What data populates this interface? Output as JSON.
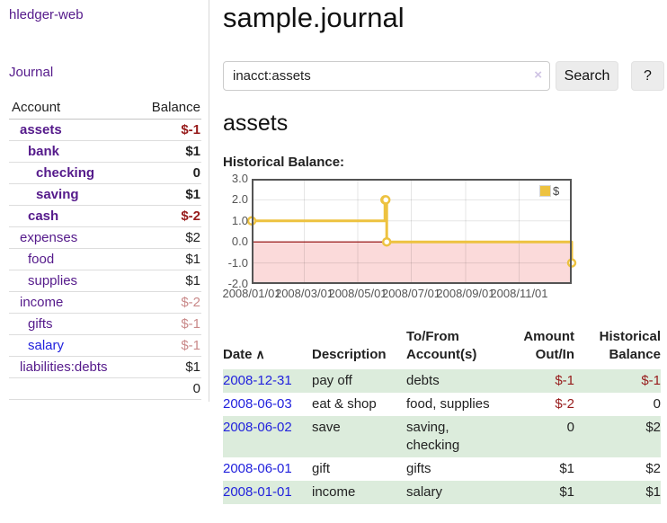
{
  "app": {
    "brand": "hledger-web"
  },
  "sidebar": {
    "nav": {
      "journal": "Journal"
    },
    "headers": {
      "account": "Account",
      "balance": "Balance"
    },
    "accounts": [
      {
        "name": "assets",
        "balance": "$-1"
      },
      {
        "name": "bank",
        "balance": "$1"
      },
      {
        "name": "checking",
        "balance": "0"
      },
      {
        "name": "saving",
        "balance": "$1"
      },
      {
        "name": "cash",
        "balance": "$-2"
      },
      {
        "name": "expenses",
        "balance": "$2"
      },
      {
        "name": "food",
        "balance": "$1"
      },
      {
        "name": "supplies",
        "balance": "$1"
      },
      {
        "name": "income",
        "balance": "$-2"
      },
      {
        "name": "gifts",
        "balance": "$-1"
      },
      {
        "name": "salary",
        "balance": "$-1"
      },
      {
        "name": "liabilities:debts",
        "balance": "$1"
      }
    ],
    "total": "0"
  },
  "main": {
    "title": "sample.journal",
    "search": {
      "value": "inacct:assets",
      "clear_icon": "×",
      "button_label": "Search",
      "help_label": "?"
    },
    "account_heading": "assets",
    "chart_label": "Historical Balance:"
  },
  "chart_data": {
    "type": "line",
    "step": true,
    "title": "Historical Balance",
    "legend_position": "top-right",
    "x_range": [
      "2008-01-01",
      "2008-12-31"
    ],
    "ylim": [
      -2,
      3
    ],
    "series": [
      {
        "name": "$",
        "color": "#edc240",
        "points": [
          [
            "2008-01-01",
            1
          ],
          [
            "2008-06-01",
            2
          ],
          [
            "2008-06-02",
            2
          ],
          [
            "2008-06-03",
            0
          ],
          [
            "2008-12-31",
            -1
          ]
        ]
      }
    ],
    "y_ticks": [
      {
        "v": 3,
        "label": "3.0"
      },
      {
        "v": 2,
        "label": "2.0"
      },
      {
        "v": 1,
        "label": "1.0"
      },
      {
        "v": 0,
        "label": "0.0"
      },
      {
        "v": -1,
        "label": "-1.0"
      },
      {
        "v": -2,
        "label": "-2.0"
      }
    ],
    "x_ticks": [
      {
        "date": "2008-01-01",
        "label": "2008/01/01"
      },
      {
        "date": "2008-03-01",
        "label": "2008/03/01"
      },
      {
        "date": "2008-05-01",
        "label": "2008/05/01"
      },
      {
        "date": "2008-07-01",
        "label": "2008/07/01"
      },
      {
        "date": "2008-09-01",
        "label": "2008/09/01"
      },
      {
        "date": "2008-11-01",
        "label": "2008/11/01"
      }
    ],
    "grid": true,
    "grid_color": "rgba(0,0,0,0.10)",
    "zero_line_color": "#8b0000",
    "negative_region_color": "#fbdada",
    "plot_border_color": "#545454"
  },
  "register": {
    "headers": {
      "date": "Date",
      "sort_icon": "∧",
      "description": "Description",
      "accounts": "To/From Account(s)",
      "amount": "Amount Out/In",
      "balance": "Historical Balance"
    },
    "rows": [
      {
        "date": "2008-12-31",
        "description": "pay off",
        "accounts": "debts",
        "amount": "$-1",
        "balance": "$-1"
      },
      {
        "date": "2008-06-03",
        "description": "eat & shop",
        "accounts": "food, supplies",
        "amount": "$-2",
        "balance": "0"
      },
      {
        "date": "2008-06-02",
        "description": "save",
        "accounts": "saving, checking",
        "amount": "0",
        "balance": "$2"
      },
      {
        "date": "2008-06-01",
        "description": "gift",
        "accounts": "gifts",
        "amount": "$1",
        "balance": "$2"
      },
      {
        "date": "2008-01-01",
        "description": "income",
        "accounts": "salary",
        "amount": "$1",
        "balance": "$1"
      }
    ]
  },
  "colors": {
    "link_purple": "#551a8b",
    "link_blue": "#2222dd",
    "negative_strong": "#971b1b",
    "negative_faded": "#c98989",
    "row_green": "#dcecdc",
    "series_gold": "#edc240",
    "chart_negative_bg": "#fbdada",
    "zero_line": "#8b0000"
  }
}
